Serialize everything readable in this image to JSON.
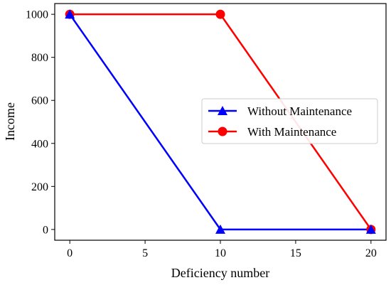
{
  "chart_data": {
    "type": "line",
    "title": "",
    "xlabel": "Deficiency number",
    "ylabel": "Income",
    "xlim": [
      -1,
      21
    ],
    "ylim": [
      -50,
      1050
    ],
    "xticks": [
      0,
      5,
      10,
      15,
      20
    ],
    "yticks": [
      0,
      200,
      400,
      600,
      800,
      1000
    ],
    "grid": false,
    "legend_position": "center-right",
    "series": [
      {
        "name": "Without Maintenance",
        "color": "#0000ff",
        "marker": "triangle",
        "x": [
          0,
          10,
          20
        ],
        "y": [
          1000,
          0,
          0
        ]
      },
      {
        "name": "With Maintenance",
        "color": "#ff0000",
        "marker": "circle",
        "x": [
          0,
          10,
          20
        ],
        "y": [
          1000,
          1000,
          0
        ]
      }
    ]
  }
}
